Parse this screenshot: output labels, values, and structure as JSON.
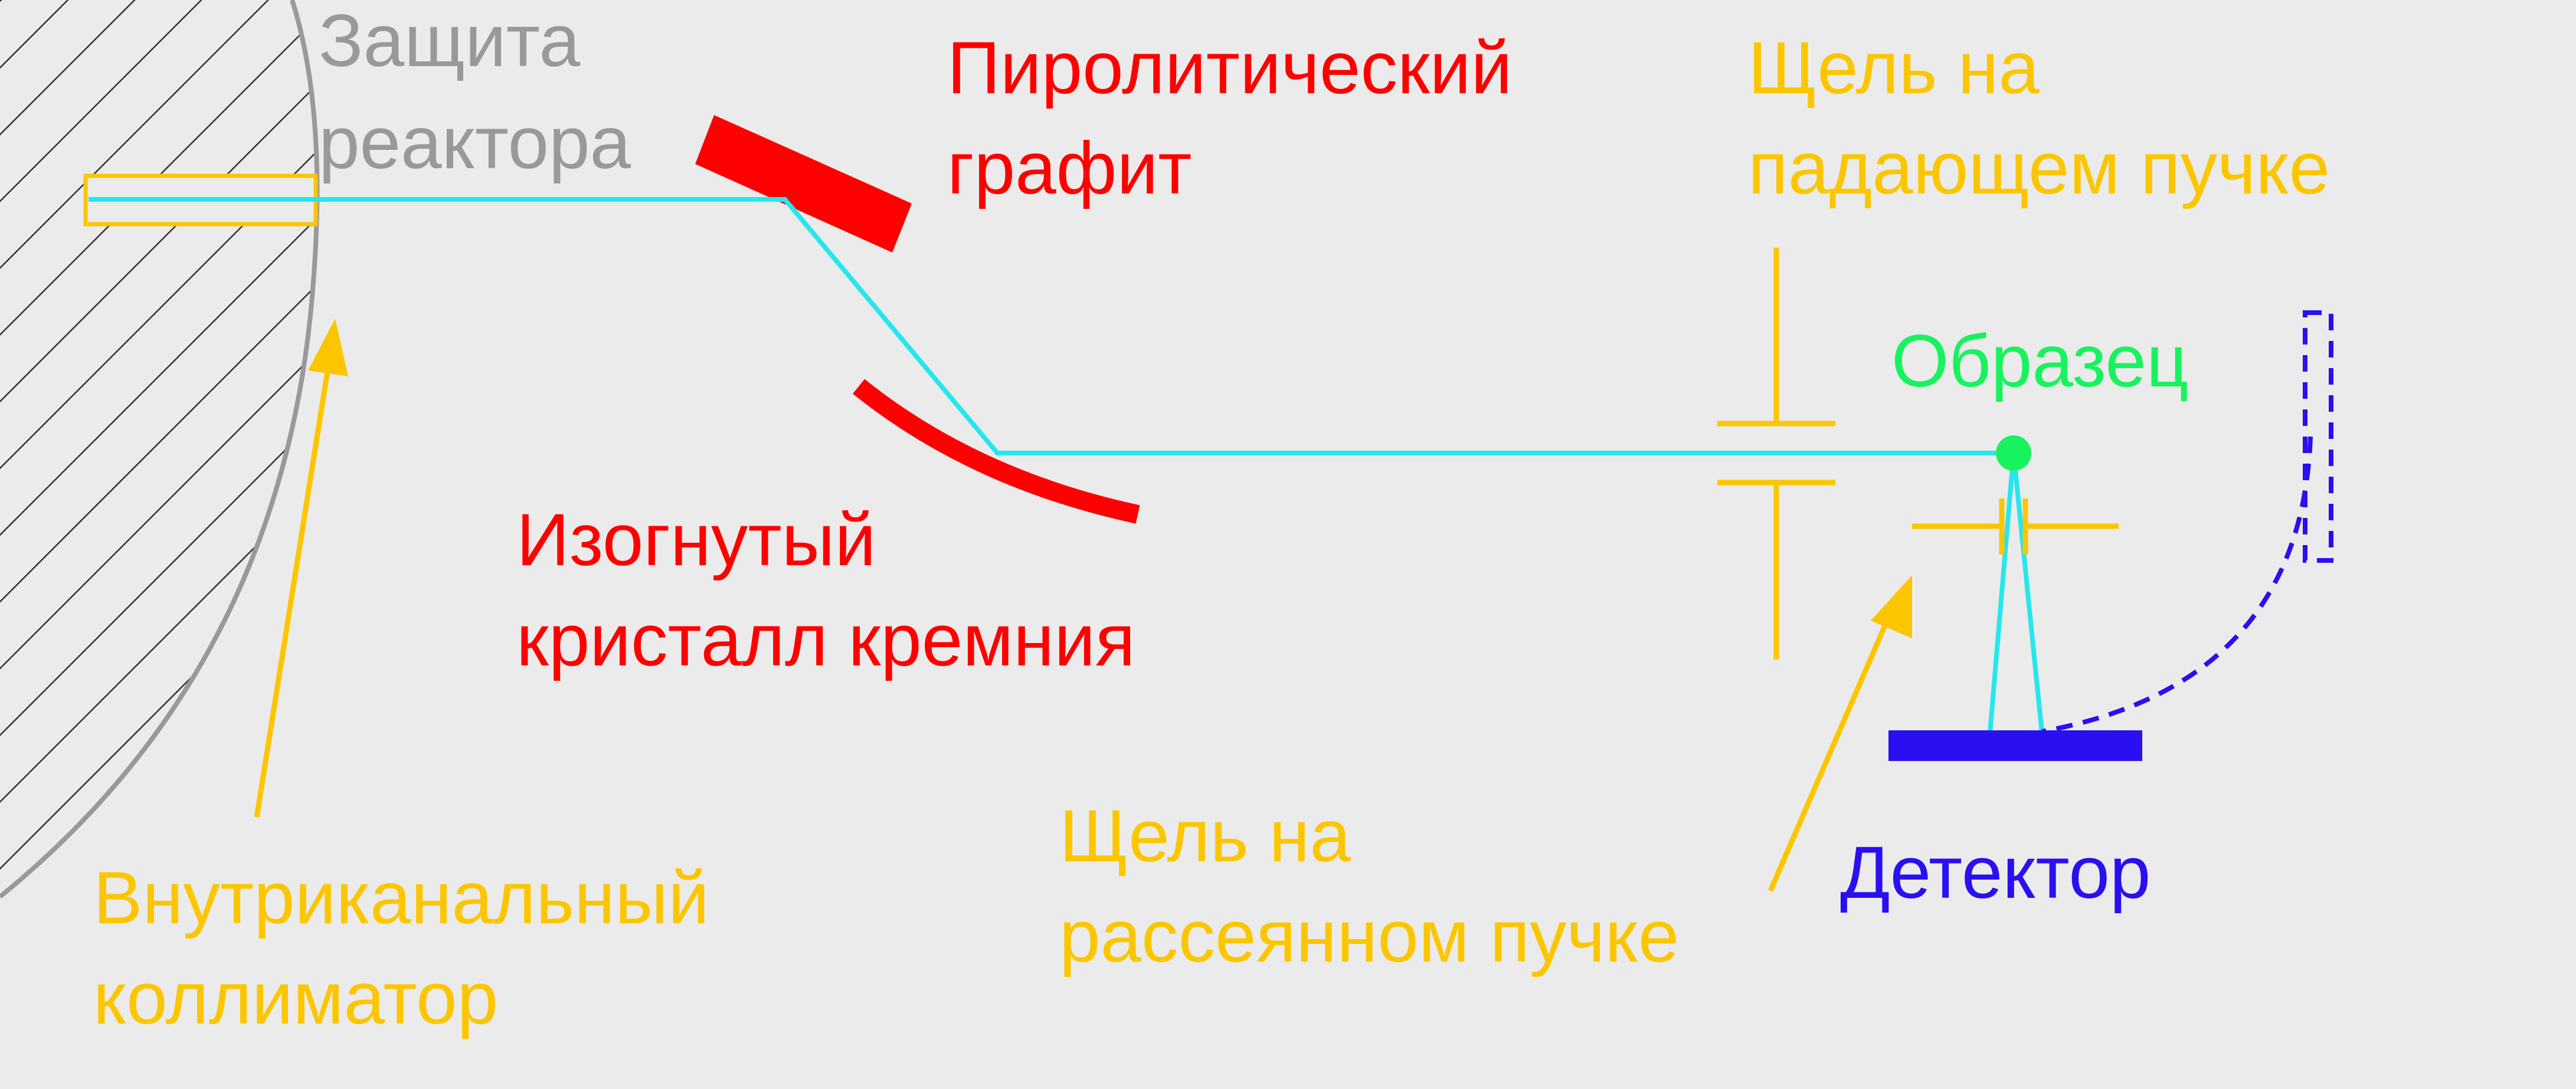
{
  "colors": {
    "background": "#ebebeb",
    "shield": "#999999",
    "beam": "#27e6ee",
    "graphite": "#ff0000",
    "slit": "#fbc600",
    "sample": "#19f25f",
    "detector": "#2a0ff0"
  },
  "labels": {
    "shield": [
      "Защита",
      "реактора"
    ],
    "graphite": [
      "Пиролитический",
      "графит"
    ],
    "slit_incident": [
      "Щель на",
      "падающем пучке"
    ],
    "sample": "Образец",
    "crystal": [
      "Изогнутый",
      "кристалл кремния"
    ],
    "slit_scattered": [
      "Щель на",
      "рассеянном пучке"
    ],
    "detector": "Детектор",
    "collimator": [
      "Внутриканальный",
      "коллиматор"
    ]
  }
}
